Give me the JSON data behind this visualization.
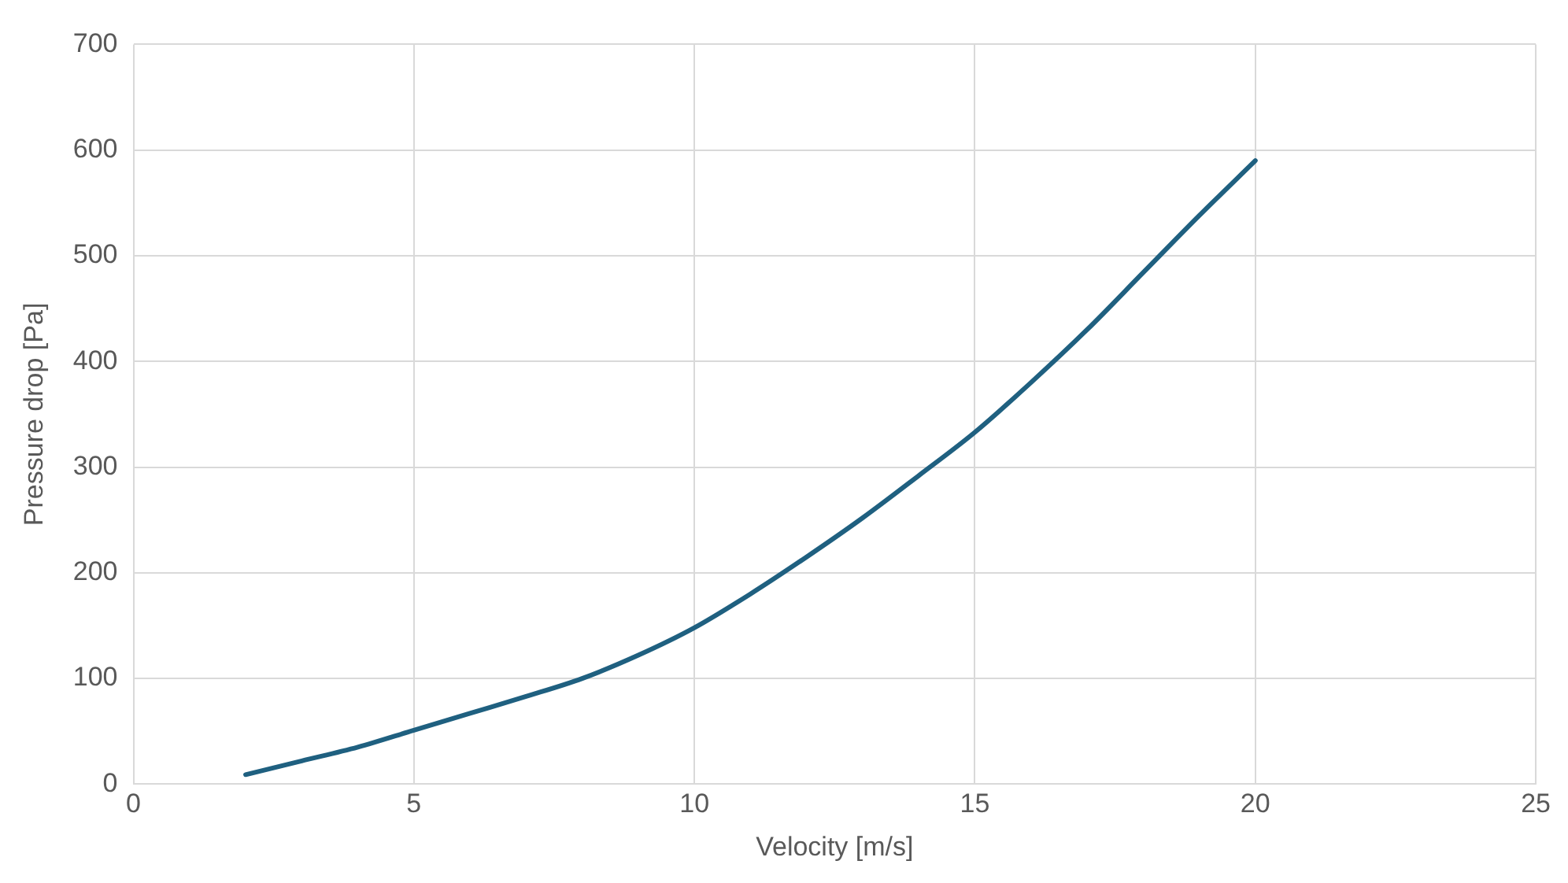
{
  "chart_data": {
    "type": "line",
    "xlabel": "Velocity [m/s]",
    "ylabel": "Pressure drop [Pa]",
    "series": [
      {
        "color": "#1f6080",
        "x": [
          2,
          3,
          4,
          5,
          6,
          7,
          8,
          9,
          10,
          11,
          12,
          13,
          14,
          15,
          16,
          17,
          18,
          19,
          20
        ],
        "values": [
          9,
          22,
          35,
          51,
          67,
          83,
          100,
          122,
          148,
          180,
          215,
          252,
          292,
          333,
          380,
          430,
          484,
          538,
          590
        ]
      }
    ],
    "xlim": [
      0,
      25
    ],
    "xticks": [
      0,
      5,
      10,
      15,
      20,
      25
    ],
    "ylim": [
      0,
      700
    ],
    "yticks": [
      0,
      100,
      200,
      300,
      400,
      500,
      600,
      700
    ],
    "grid": true,
    "legend": false,
    "marker": "none",
    "line_style": "solid"
  }
}
